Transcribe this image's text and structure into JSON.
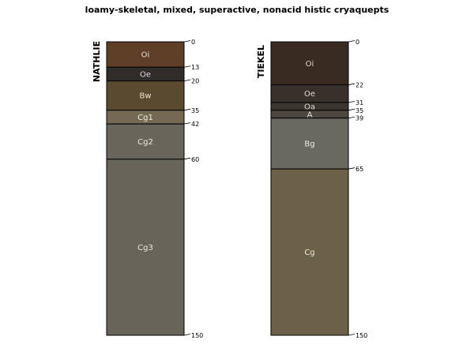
{
  "figure": {
    "title": "loamy-skeletal, mixed, superactive, nonacid histic cryaquepts",
    "max_depth": 150
  },
  "chart_data": {
    "type": "soil-profile",
    "title": "loamy-skeletal, mixed, superactive, nonacid histic cryaquepts",
    "depth_range": [
      0,
      150
    ],
    "profiles": [
      {
        "name": "NATHLIE",
        "horizons": [
          {
            "name": "Oi",
            "top": 0,
            "bottom": 13,
            "color": "#5e3e27",
            "label_color": "#e8e0d8"
          },
          {
            "name": "Oe",
            "top": 13,
            "bottom": 20,
            "color": "#2f2c29",
            "label_color": "#dedede"
          },
          {
            "name": "Bw",
            "top": 20,
            "bottom": 35,
            "color": "#5a4a30",
            "label_color": "#ece4d6"
          },
          {
            "name": "Cg1",
            "top": 35,
            "bottom": 42,
            "color": "#756954",
            "label_color": "#f2ede4"
          },
          {
            "name": "Cg2",
            "top": 42,
            "bottom": 60,
            "color": "#68655b",
            "label_color": "#ece8e0"
          },
          {
            "name": "Cg3",
            "top": 60,
            "bottom": 150,
            "color": "#67645a",
            "label_color": "#ece8e0"
          }
        ],
        "depth_ticks": [
          0,
          13,
          20,
          35,
          42,
          60,
          150
        ]
      },
      {
        "name": "TIEKEL",
        "horizons": [
          {
            "name": "Oi",
            "top": 0,
            "bottom": 22,
            "color": "#3a2b22",
            "label_color": "#dcd4cc"
          },
          {
            "name": "Oe",
            "top": 22,
            "bottom": 31,
            "color": "#39302b",
            "label_color": "#dedad4"
          },
          {
            "name": "Oa",
            "top": 31,
            "bottom": 35,
            "color": "#3a3630",
            "label_color": "#dedad4"
          },
          {
            "name": "A",
            "top": 35,
            "bottom": 39,
            "color": "#4c4840",
            "label_color": "#e6e2da"
          },
          {
            "name": "Bg",
            "top": 39,
            "bottom": 65,
            "color": "#6a6960",
            "label_color": "#eeeae2"
          },
          {
            "name": "Cg",
            "top": 65,
            "bottom": 150,
            "color": "#6b6048",
            "label_color": "#efe9dc"
          }
        ],
        "depth_ticks": [
          0,
          22,
          31,
          35,
          39,
          65,
          150
        ]
      }
    ]
  }
}
